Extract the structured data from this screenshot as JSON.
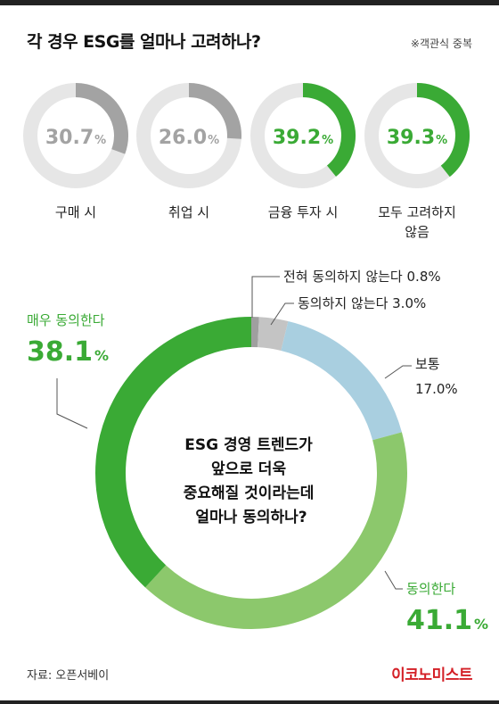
{
  "header": {
    "title": "각 경우 ESG를 얼마나 고려하나?",
    "note": "※객관식 중복"
  },
  "footer": {
    "source": "자료: 오픈서베이",
    "brand": "이코노미스트"
  },
  "colors": {
    "gray_ring": "#a3a3a3",
    "green": "#3aaa35",
    "light_green": "#8cc86c",
    "light_blue": "#a9cfe0",
    "light_gray": "#c4c4c4",
    "track": "#e6e6e6"
  },
  "chart_data": [
    {
      "type": "pie",
      "variant": "small-donuts",
      "categories": [
        "구매 시",
        "취업 시",
        "금융 투자 시",
        "모두 고려하지 않음"
      ],
      "values": [
        30.7,
        26.0,
        39.2,
        39.3
      ],
      "value_labels": [
        "30.7",
        "26.0",
        "39.2",
        "39.3"
      ],
      "unit": "%",
      "highlight": [
        false,
        false,
        true,
        true
      ]
    },
    {
      "type": "pie",
      "variant": "donut",
      "title": "ESG 경영 트렌드가 앞으로 더욱 중요해질 것이라는데 얼마나 동의하나?",
      "title_lines": [
        "ESG 경영 트렌드가",
        "앞으로 더욱",
        "중요해질 것이라는데",
        "얼마나 동의하나?"
      ],
      "unit": "%",
      "slices": [
        {
          "label": "전혀 동의하지 않는다",
          "value": 0.8,
          "color": "#9f9f9f"
        },
        {
          "label": "동의하지 않는다",
          "value": 3.0,
          "color": "#c4c4c4"
        },
        {
          "label": "보통",
          "value": 17.0,
          "color": "#a9cfe0"
        },
        {
          "label": "동의한다",
          "value": 41.1,
          "color": "#8cc86c"
        },
        {
          "label": "매우 동의한다",
          "value": 38.1,
          "color": "#3aaa35"
        }
      ],
      "callouts": {
        "strongly_disagree": "전혀 동의하지 않는다 0.8%",
        "disagree": "동의하지 않는다 3.0%",
        "neutral_label": "보통",
        "neutral_value": "17.0%",
        "agree_label": "동의한다",
        "agree_value": "41.1",
        "strongly_agree_label": "매우 동의한다",
        "strongly_agree_value": "38.1"
      }
    }
  ]
}
